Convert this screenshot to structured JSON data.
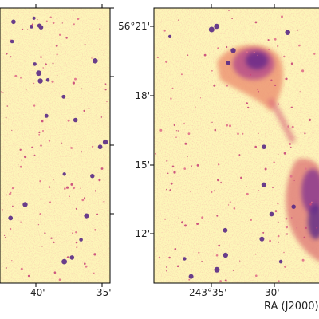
{
  "chart_data": [
    {
      "type": "heatmap",
      "name": "left-panel",
      "colormap": "magma-pale",
      "colors": {
        "low": "#fdf6b8",
        "mid": "#f18d6a",
        "high": "#4b1d80"
      },
      "x_ticks": [
        "40'",
        "35'"
      ],
      "y_ticks": [],
      "xlabel": "",
      "ylabel": ""
    },
    {
      "type": "heatmap",
      "name": "right-panel",
      "colormap": "magma-pale",
      "colors": {
        "low": "#fdf6b8",
        "mid": "#f18d6a",
        "high": "#4b1d80"
      },
      "x_ticks": [
        "243°35'",
        "30'"
      ],
      "y_ticks": [
        "56°21'",
        "18'",
        "15'",
        "12'"
      ],
      "xlabel": "RA (J2000)",
      "ylabel": ""
    }
  ]
}
